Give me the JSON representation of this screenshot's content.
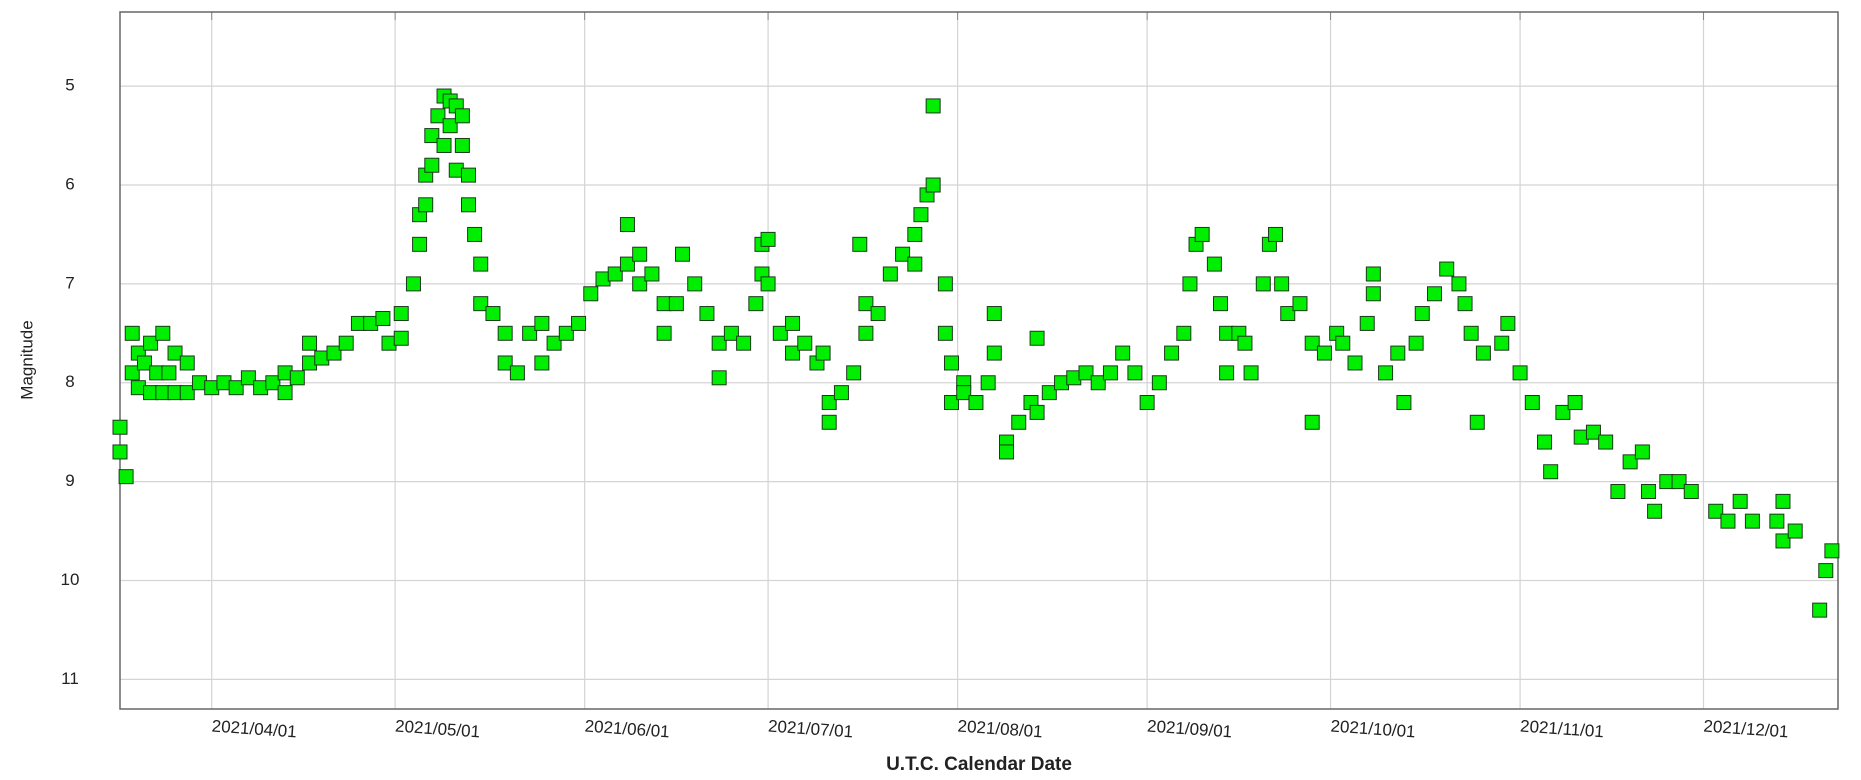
{
  "chart_data": {
    "type": "scatter",
    "x_label": "U.T.C. Calendar Date",
    "y_label": "Magnitude",
    "xlim": [
      "2021/03/17",
      "2021/12/23"
    ],
    "xticks": [
      "2021/04/01",
      "2021/05/01",
      "2021/06/01",
      "2021/07/01",
      "2021/08/01",
      "2021/09/01",
      "2021/10/01",
      "2021/11/01",
      "2021/12/01"
    ],
    "ylim": [
      11.3,
      4.25
    ],
    "yticks": [
      5,
      6,
      7,
      8,
      9,
      10,
      11
    ],
    "grid": true,
    "series": [
      {
        "color": "#00ee00",
        "x": [
          "2021/03/17",
          "2021/03/17",
          "2021/03/18",
          "2021/03/19",
          "2021/03/19",
          "2021/03/20",
          "2021/03/20",
          "2021/03/21",
          "2021/03/22",
          "2021/03/22",
          "2021/03/23",
          "2021/03/24",
          "2021/03/24",
          "2021/03/25",
          "2021/03/26",
          "2021/03/26",
          "2021/03/28",
          "2021/03/28",
          "2021/03/30",
          "2021/04/01",
          "2021/04/03",
          "2021/04/05",
          "2021/04/07",
          "2021/04/09",
          "2021/04/11",
          "2021/04/13",
          "2021/04/13",
          "2021/04/15",
          "2021/04/17",
          "2021/04/17",
          "2021/04/19",
          "2021/04/21",
          "2021/04/23",
          "2021/04/25",
          "2021/04/27",
          "2021/04/29",
          "2021/04/30",
          "2021/05/02",
          "2021/05/02",
          "2021/05/04",
          "2021/05/05",
          "2021/05/05",
          "2021/05/06",
          "2021/05/06",
          "2021/05/07",
          "2021/05/07",
          "2021/05/08",
          "2021/05/09",
          "2021/05/09",
          "2021/05/10",
          "2021/05/10",
          "2021/05/11",
          "2021/05/11",
          "2021/05/12",
          "2021/05/12",
          "2021/05/13",
          "2021/05/13",
          "2021/05/14",
          "2021/05/15",
          "2021/05/15",
          "2021/05/17",
          "2021/05/19",
          "2021/05/19",
          "2021/05/21",
          "2021/05/23",
          "2021/05/25",
          "2021/05/25",
          "2021/05/27",
          "2021/05/29",
          "2021/05/31",
          "2021/06/02",
          "2021/06/04",
          "2021/06/06",
          "2021/06/08",
          "2021/06/08",
          "2021/06/10",
          "2021/06/10",
          "2021/06/12",
          "2021/06/14",
          "2021/06/14",
          "2021/06/16",
          "2021/06/17",
          "2021/06/19",
          "2021/06/21",
          "2021/06/23",
          "2021/06/23",
          "2021/06/25",
          "2021/06/27",
          "2021/06/29",
          "2021/06/30",
          "2021/06/30",
          "2021/07/01",
          "2021/07/01",
          "2021/07/03",
          "2021/07/05",
          "2021/07/05",
          "2021/07/07",
          "2021/07/09",
          "2021/07/10",
          "2021/07/11",
          "2021/07/11",
          "2021/07/13",
          "2021/07/15",
          "2021/07/16",
          "2021/07/17",
          "2021/07/17",
          "2021/07/19",
          "2021/07/21",
          "2021/07/23",
          "2021/07/25",
          "2021/07/25",
          "2021/07/26",
          "2021/07/27",
          "2021/07/28",
          "2021/07/28",
          "2021/07/30",
          "2021/07/30",
          "2021/07/31",
          "2021/07/31",
          "2021/08/02",
          "2021/08/02",
          "2021/08/04",
          "2021/08/06",
          "2021/08/07",
          "2021/08/07",
          "2021/08/09",
          "2021/08/09",
          "2021/08/11",
          "2021/08/13",
          "2021/08/14",
          "2021/08/14",
          "2021/08/16",
          "2021/08/18",
          "2021/08/20",
          "2021/08/22",
          "2021/08/24",
          "2021/08/26",
          "2021/08/28",
          "2021/08/30",
          "2021/09/01",
          "2021/09/03",
          "2021/09/05",
          "2021/09/07",
          "2021/09/08",
          "2021/09/09",
          "2021/09/10",
          "2021/09/12",
          "2021/09/13",
          "2021/09/14",
          "2021/09/14",
          "2021/09/16",
          "2021/09/17",
          "2021/09/18",
          "2021/09/20",
          "2021/09/21",
          "2021/09/22",
          "2021/09/23",
          "2021/09/24",
          "2021/09/26",
          "2021/09/28",
          "2021/09/28",
          "2021/09/30",
          "2021/10/02",
          "2021/10/03",
          "2021/10/05",
          "2021/10/07",
          "2021/10/08",
          "2021/10/08",
          "2021/10/10",
          "2021/10/12",
          "2021/10/13",
          "2021/10/15",
          "2021/10/16",
          "2021/10/18",
          "2021/10/20",
          "2021/10/22",
          "2021/10/23",
          "2021/10/24",
          "2021/10/25",
          "2021/10/26",
          "2021/10/29",
          "2021/10/30",
          "2021/11/01",
          "2021/11/03",
          "2021/11/05",
          "2021/11/06",
          "2021/11/08",
          "2021/11/10",
          "2021/11/11",
          "2021/11/13",
          "2021/11/15",
          "2021/11/17",
          "2021/11/19",
          "2021/11/21",
          "2021/11/22",
          "2021/11/23",
          "2021/11/25",
          "2021/11/27",
          "2021/11/29",
          "2021/12/03",
          "2021/12/05",
          "2021/12/07",
          "2021/12/09",
          "2021/12/13",
          "2021/12/14",
          "2021/12/14",
          "2021/12/16",
          "2021/12/20",
          "2021/12/21",
          "2021/12/22"
        ],
        "values": [
          8.45,
          8.7,
          8.95,
          7.9,
          7.5,
          7.7,
          8.05,
          7.8,
          7.6,
          8.1,
          7.9,
          7.5,
          8.1,
          7.9,
          8.1,
          7.7,
          8.1,
          7.8,
          8.0,
          8.05,
          8.0,
          8.05,
          7.95,
          8.05,
          8.0,
          8.1,
          7.9,
          7.95,
          7.6,
          7.8,
          7.75,
          7.7,
          7.6,
          7.4,
          7.4,
          7.35,
          7.6,
          7.3,
          7.55,
          7.0,
          6.3,
          6.6,
          5.9,
          6.2,
          5.5,
          5.8,
          5.3,
          5.1,
          5.6,
          5.15,
          5.4,
          5.2,
          5.85,
          5.3,
          5.6,
          5.9,
          6.2,
          6.5,
          6.8,
          7.2,
          7.3,
          7.5,
          7.8,
          7.9,
          7.5,
          7.8,
          7.4,
          7.6,
          7.5,
          7.4,
          7.1,
          6.95,
          6.9,
          6.4,
          6.8,
          6.7,
          7.0,
          6.9,
          7.2,
          7.5,
          7.2,
          6.7,
          7.0,
          7.3,
          7.6,
          7.95,
          7.5,
          7.6,
          7.2,
          6.9,
          6.6,
          6.55,
          7.0,
          7.5,
          7.7,
          7.4,
          7.6,
          7.8,
          7.7,
          8.2,
          8.4,
          8.1,
          7.9,
          6.6,
          7.2,
          7.5,
          7.3,
          6.9,
          6.7,
          6.5,
          6.8,
          6.3,
          6.1,
          5.2,
          6.0,
          7.0,
          7.5,
          7.8,
          8.2,
          8.0,
          8.1,
          8.2,
          8.0,
          7.3,
          7.7,
          8.6,
          8.7,
          8.4,
          8.2,
          7.55,
          8.3,
          8.1,
          8.0,
          7.95,
          7.9,
          8.0,
          7.9,
          7.7,
          7.9,
          8.2,
          8.0,
          7.7,
          7.5,
          7.0,
          6.6,
          6.5,
          6.8,
          7.2,
          7.5,
          7.9,
          7.5,
          7.6,
          7.9,
          7.0,
          6.6,
          6.5,
          7.0,
          7.3,
          7.2,
          7.6,
          8.4,
          7.7,
          7.5,
          7.6,
          7.8,
          7.4,
          7.1,
          6.9,
          7.9,
          7.7,
          8.2,
          7.6,
          7.3,
          7.1,
          6.85,
          7.0,
          7.2,
          7.5,
          8.4,
          7.7,
          7.6,
          7.4,
          7.9,
          8.2,
          8.6,
          8.9,
          8.3,
          8.2,
          8.55,
          8.5,
          8.6,
          9.1,
          8.8,
          8.7,
          9.1,
          9.3,
          9.0,
          9.0,
          9.1,
          9.3,
          9.4,
          9.2,
          9.4,
          9.4,
          9.6,
          9.2,
          9.5,
          10.3,
          9.9,
          9.7
        ]
      }
    ]
  }
}
